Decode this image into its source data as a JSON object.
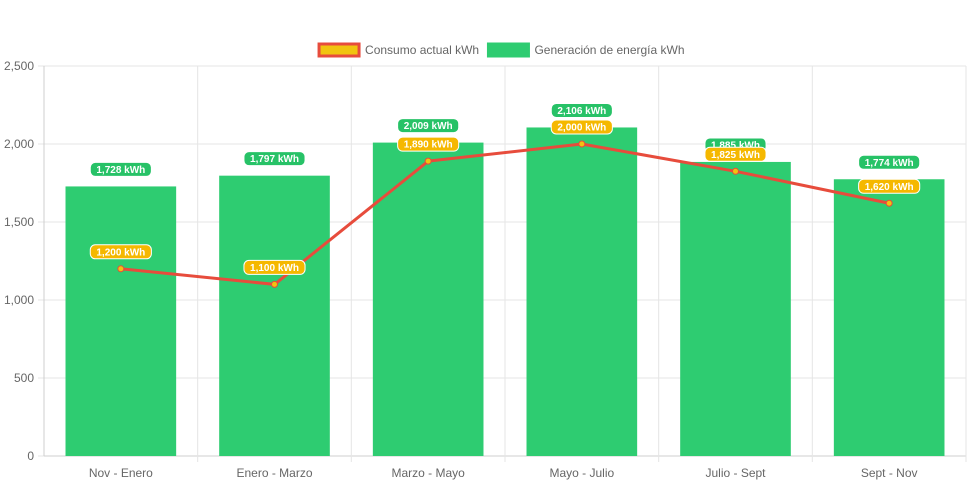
{
  "chart_data": {
    "type": "bar",
    "categories": [
      "Nov - Enero",
      "Enero - Marzo",
      "Marzo - Mayo",
      "Mayo - Julio",
      "Julio - Sept",
      "Sept - Nov"
    ],
    "series": [
      {
        "name": "Generación de energía kWh",
        "type": "bar",
        "color": "#2ecc71",
        "values": [
          1728,
          1797,
          2009,
          2106,
          1885,
          1774
        ],
        "labels": [
          "1,728 kWh",
          "1,797 kWh",
          "2,009 kWh",
          "2,106 kWh",
          "1,885 kWh",
          "1,774 kWh"
        ]
      },
      {
        "name": "Consumo actual kWh",
        "type": "line",
        "color": "#e74c3c",
        "marker_color": "#f1c40f",
        "values": [
          1200,
          1100,
          1890,
          2000,
          1825,
          1620
        ],
        "labels": [
          "1,200 kWh",
          "1,100 kWh",
          "1,890 kWh",
          "2,000 kWh",
          "1,825 kWh",
          "1,620 kWh"
        ]
      }
    ],
    "ylim": [
      0,
      2500
    ],
    "yticks": [
      0,
      500,
      1000,
      1500,
      2000,
      2500
    ],
    "ytick_labels": [
      "0",
      "500",
      "1,000",
      "1,500",
      "2,000",
      "2,500"
    ],
    "grid": true,
    "legend": {
      "position": "top-center",
      "items": [
        {
          "label": "Consumo actual kWh",
          "fill": "#f1c40f",
          "border": "#e74c3c"
        },
        {
          "label": "Generación de energía kWh",
          "fill": "#2ecc71",
          "border": "#2ecc71"
        }
      ]
    },
    "title": "",
    "xlabel": "",
    "ylabel": ""
  }
}
